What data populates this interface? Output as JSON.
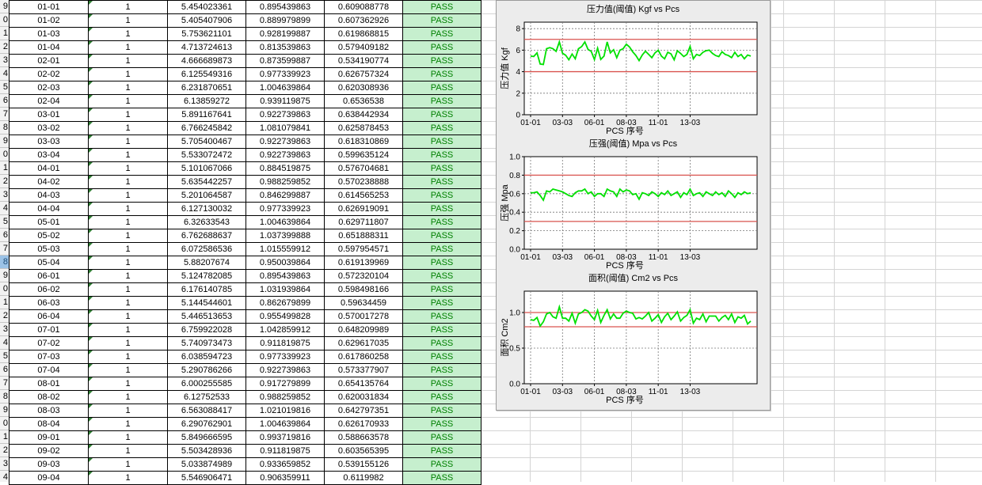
{
  "sheet": {
    "row_headers": [
      "9",
      "0",
      "1",
      "2",
      "3",
      "4",
      "5",
      "6",
      "7",
      "8",
      "9",
      "0",
      "1",
      "2",
      "3",
      "4",
      "5",
      "6",
      "7",
      "8",
      "9",
      "0",
      "1",
      "2",
      "3",
      "4",
      "5",
      "6",
      "7",
      "8",
      "9",
      "0",
      "1",
      "2",
      "3",
      "4"
    ],
    "selected_row_index": 19,
    "rows": [
      {
        "id": "01-01",
        "qty": "1",
        "n": "5.454023361",
        "r": "0.895439863",
        "a": "0.609088778",
        "result": "PASS"
      },
      {
        "id": "01-02",
        "qty": "1",
        "n": "5.405407906",
        "r": "0.889979899",
        "a": "0.607362926",
        "result": "PASS"
      },
      {
        "id": "01-03",
        "qty": "1",
        "n": "5.753621101",
        "r": "0.928199887",
        "a": "0.619868815",
        "result": "PASS"
      },
      {
        "id": "01-04",
        "qty": "1",
        "n": "4.713724613",
        "r": "0.813539863",
        "a": "0.579409182",
        "result": "PASS"
      },
      {
        "id": "02-01",
        "qty": "1",
        "n": "4.666689873",
        "r": "0.873599887",
        "a": "0.534190774",
        "result": "PASS"
      },
      {
        "id": "02-02",
        "qty": "1",
        "n": "6.125549316",
        "r": "0.977339923",
        "a": "0.626757324",
        "result": "PASS"
      },
      {
        "id": "02-03",
        "qty": "1",
        "n": "6.231870651",
        "r": "1.004639864",
        "a": "0.620308936",
        "result": "PASS"
      },
      {
        "id": "02-04",
        "qty": "1",
        "n": "6.13859272",
        "r": "0.939119875",
        "a": "0.6536538",
        "result": "PASS"
      },
      {
        "id": "03-01",
        "qty": "1",
        "n": "5.891167641",
        "r": "0.922739863",
        "a": "0.638442934",
        "result": "PASS"
      },
      {
        "id": "03-02",
        "qty": "1",
        "n": "6.766245842",
        "r": "1.081079841",
        "a": "0.625878453",
        "result": "PASS"
      },
      {
        "id": "03-03",
        "qty": "1",
        "n": "5.705400467",
        "r": "0.922739863",
        "a": "0.618310869",
        "result": "PASS"
      },
      {
        "id": "03-04",
        "qty": "1",
        "n": "5.533072472",
        "r": "0.922739863",
        "a": "0.599635124",
        "result": "PASS"
      },
      {
        "id": "04-01",
        "qty": "1",
        "n": "5.101067066",
        "r": "0.884519875",
        "a": "0.576704681",
        "result": "PASS"
      },
      {
        "id": "04-02",
        "qty": "1",
        "n": "5.635442257",
        "r": "0.988259852",
        "a": "0.570238888",
        "result": "PASS"
      },
      {
        "id": "04-03",
        "qty": "1",
        "n": "5.201064587",
        "r": "0.846299887",
        "a": "0.614565253",
        "result": "PASS"
      },
      {
        "id": "04-04",
        "qty": "1",
        "n": "6.127130032",
        "r": "0.977339923",
        "a": "0.626919091",
        "result": "PASS"
      },
      {
        "id": "05-01",
        "qty": "1",
        "n": "6.32633543",
        "r": "1.004639864",
        "a": "0.629711807",
        "result": "PASS"
      },
      {
        "id": "05-02",
        "qty": "1",
        "n": "6.762688637",
        "r": "1.037399888",
        "a": "0.651888311",
        "result": "PASS"
      },
      {
        "id": "05-03",
        "qty": "1",
        "n": "6.072586536",
        "r": "1.015559912",
        "a": "0.597954571",
        "result": "PASS"
      },
      {
        "id": "05-04",
        "qty": "1",
        "n": "5.88207674",
        "r": "0.950039864",
        "a": "0.619139969",
        "result": "PASS"
      },
      {
        "id": "06-01",
        "qty": "1",
        "n": "5.124782085",
        "r": "0.895439863",
        "a": "0.572320104",
        "result": "PASS"
      },
      {
        "id": "06-02",
        "qty": "1",
        "n": "6.176140785",
        "r": "1.031939864",
        "a": "0.598498166",
        "result": "PASS"
      },
      {
        "id": "06-03",
        "qty": "1",
        "n": "5.144544601",
        "r": "0.862679899",
        "a": "0.59634459",
        "result": "PASS"
      },
      {
        "id": "06-04",
        "qty": "1",
        "n": "5.446513653",
        "r": "0.955499828",
        "a": "0.570017278",
        "result": "PASS"
      },
      {
        "id": "07-01",
        "qty": "1",
        "n": "6.759922028",
        "r": "1.042859912",
        "a": "0.648209989",
        "result": "PASS"
      },
      {
        "id": "07-02",
        "qty": "1",
        "n": "5.740973473",
        "r": "0.911819875",
        "a": "0.629617035",
        "result": "PASS"
      },
      {
        "id": "07-03",
        "qty": "1",
        "n": "6.038594723",
        "r": "0.977339923",
        "a": "0.617860258",
        "result": "PASS"
      },
      {
        "id": "07-04",
        "qty": "1",
        "n": "5.290786266",
        "r": "0.922739863",
        "a": "0.573377907",
        "result": "PASS"
      },
      {
        "id": "08-01",
        "qty": "1",
        "n": "6.000255585",
        "r": "0.917279899",
        "a": "0.654135764",
        "result": "PASS"
      },
      {
        "id": "08-02",
        "qty": "1",
        "n": "6.12752533",
        "r": "0.988259852",
        "a": "0.620031834",
        "result": "PASS"
      },
      {
        "id": "08-03",
        "qty": "1",
        "n": "6.563088417",
        "r": "1.021019816",
        "a": "0.642797351",
        "result": "PASS"
      },
      {
        "id": "08-04",
        "qty": "1",
        "n": "6.290762901",
        "r": "1.004639864",
        "a": "0.626170933",
        "result": "PASS"
      },
      {
        "id": "09-01",
        "qty": "1",
        "n": "5.849666595",
        "r": "0.993719816",
        "a": "0.588663578",
        "result": "PASS"
      },
      {
        "id": "09-02",
        "qty": "1",
        "n": "5.503428936",
        "r": "0.911819875",
        "a": "0.603565395",
        "result": "PASS"
      },
      {
        "id": "09-03",
        "qty": "1",
        "n": "5.033874989",
        "r": "0.933659852",
        "a": "0.539155126",
        "result": "PASS"
      },
      {
        "id": "09-04",
        "qty": "1",
        "n": "5.546906471",
        "r": "0.906359911",
        "a": "0.6119982",
        "result": "PASS"
      }
    ]
  },
  "colors": {
    "line": "#00e000",
    "limit": "#d9534f",
    "pass_bg": "#c6efce",
    "pass_text": "#008000"
  },
  "chart_data": [
    {
      "type": "line",
      "title": "压力值(阈值) Kgf vs Pcs",
      "xlabel": "PCS 序号",
      "ylabel": "压力值 Kgf",
      "x_tick_labels": [
        "01-01",
        "03-03",
        "06-01",
        "08-03",
        "11-01",
        "13-03"
      ],
      "y_ticks": [
        0,
        2,
        4,
        6,
        8
      ],
      "ylim": [
        0,
        8.6
      ],
      "limits": [
        7,
        4
      ],
      "grid": true,
      "values": [
        5.45,
        5.41,
        5.75,
        4.71,
        4.67,
        6.13,
        6.23,
        6.14,
        5.89,
        6.77,
        5.71,
        5.53,
        5.1,
        5.64,
        5.2,
        6.13,
        6.33,
        6.76,
        6.07,
        5.88,
        5.12,
        6.18,
        5.14,
        5.45,
        6.76,
        5.74,
        6.04,
        5.29,
        6.0,
        6.13,
        6.56,
        6.29,
        5.85,
        5.5,
        5.03,
        5.55,
        5.9,
        5.6,
        5.3,
        5.75,
        6.0,
        5.45,
        5.2,
        5.8,
        5.65,
        5.1,
        5.95,
        5.7,
        5.4,
        5.6,
        6.35,
        5.2,
        5.6,
        5.5,
        5.8,
        5.95,
        6.0,
        5.7,
        5.5,
        5.4,
        5.85,
        5.6,
        5.5,
        5.3,
        5.8,
        5.4,
        5.6,
        5.2,
        5.55,
        5.45
      ]
    },
    {
      "type": "line",
      "title": "压强(阈值) Mpa vs Pcs",
      "xlabel": "PCS 序号",
      "ylabel": "压强 Mpa",
      "x_tick_labels": [
        "01-01",
        "03-03",
        "06-01",
        "08-03",
        "11-01",
        "13-03"
      ],
      "y_ticks": [
        0.0,
        0.2,
        0.4,
        0.6,
        0.8,
        1.0
      ],
      "ylim": [
        0,
        1.0
      ],
      "limits": [
        0.8,
        0.3
      ],
      "grid": true,
      "values": [
        0.61,
        0.61,
        0.62,
        0.58,
        0.53,
        0.63,
        0.62,
        0.65,
        0.64,
        0.63,
        0.62,
        0.6,
        0.58,
        0.57,
        0.61,
        0.63,
        0.63,
        0.65,
        0.6,
        0.62,
        0.57,
        0.6,
        0.6,
        0.57,
        0.65,
        0.63,
        0.62,
        0.57,
        0.65,
        0.62,
        0.64,
        0.63,
        0.59,
        0.6,
        0.54,
        0.61,
        0.6,
        0.58,
        0.62,
        0.6,
        0.57,
        0.61,
        0.59,
        0.63,
        0.58,
        0.6,
        0.62,
        0.56,
        0.61,
        0.59,
        0.65,
        0.58,
        0.6,
        0.61,
        0.57,
        0.62,
        0.6,
        0.58,
        0.62,
        0.59,
        0.61,
        0.57,
        0.63,
        0.6,
        0.56,
        0.61,
        0.59,
        0.62,
        0.6,
        0.61
      ]
    },
    {
      "type": "line",
      "title": "面积(阈值) Cm2 vs Pcs",
      "xlabel": "PCS 序号",
      "ylabel": "面积 Cm2",
      "x_tick_labels": [
        "01-01",
        "03-03",
        "06-01",
        "08-03",
        "11-01",
        "13-03"
      ],
      "y_ticks": [
        0.0,
        0.5,
        1.0
      ],
      "ylim": [
        0,
        1.3
      ],
      "limits": [
        1.0,
        0.8
      ],
      "grid": true,
      "values": [
        0.9,
        0.89,
        0.93,
        0.81,
        0.87,
        0.98,
        1.0,
        0.94,
        0.92,
        1.08,
        0.92,
        0.92,
        0.88,
        0.99,
        0.85,
        0.98,
        1.0,
        1.04,
        1.02,
        0.95,
        0.9,
        1.03,
        0.86,
        0.96,
        1.04,
        0.91,
        0.98,
        0.92,
        0.92,
        0.99,
        1.02,
        1.0,
        0.99,
        0.91,
        0.93,
        0.91,
        0.95,
        1.0,
        0.88,
        0.92,
        0.97,
        0.86,
        0.94,
        0.99,
        0.9,
        0.95,
        1.01,
        0.88,
        0.93,
        0.96,
        1.04,
        0.85,
        0.92,
        0.9,
        0.98,
        0.87,
        0.95,
        0.95,
        0.95,
        0.88,
        0.93,
        0.96,
        0.9,
        0.98,
        0.86,
        0.94,
        0.92,
        0.96,
        0.84,
        0.88
      ]
    }
  ]
}
